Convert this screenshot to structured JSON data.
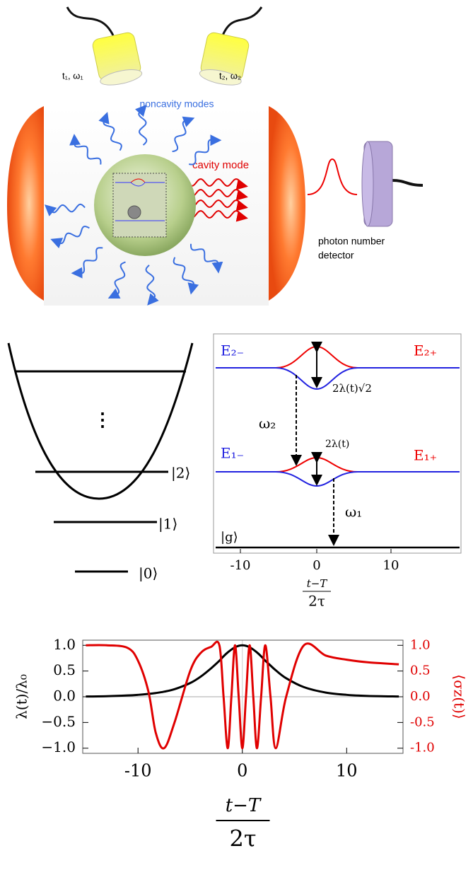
{
  "diagram": {
    "laser_left": "t₁, ω₁",
    "laser_right": "t₂, ω₂",
    "noncavity": "noncavity modes",
    "cavity": "cavity mode",
    "detector_line1": "photon number",
    "detector_line2": "detector",
    "oscillator": {
      "dots": "⋮",
      "level2": "|2⟩",
      "level1": "|1⟩",
      "level0": "|0⟩"
    },
    "levels": {
      "e2minus": "E₂₋",
      "e2plus": "E₂₊",
      "split2": "2λ(t)√2",
      "omega2": "ω₂",
      "e1minus": "E₁₋",
      "e1plus": "E₁₊",
      "split1": "2λ(t)",
      "omega1": "ω₁",
      "ground": "|g⟩",
      "tick_left": "-10",
      "tick_mid": "0",
      "tick_right": "10",
      "xlabel_num": "t−T",
      "xlabel_den": "2τ"
    }
  },
  "chart_data": {
    "type": "line",
    "xlabel_num": "t−T",
    "xlabel_den": "2τ",
    "ylabel": "λ(t)/λ₀",
    "y2label": "⟨σz(t)⟩",
    "x": [
      -15,
      -13,
      -11,
      -10,
      -9,
      -8.3,
      -7.5,
      -6.5,
      -5,
      -4,
      -3,
      -2.2,
      -1.8,
      -1.4,
      -1.05,
      -0.7,
      -0.35,
      0,
      0.35,
      0.7,
      1.05,
      1.4,
      1.8,
      2.2,
      2.7,
      3.2,
      4.2,
      5.9,
      8,
      10,
      12,
      15
    ],
    "series": [
      {
        "color": "#000000",
        "values": [
          0.005,
          0.011,
          0.025,
          0.037,
          0.055,
          0.072,
          0.099,
          0.147,
          0.266,
          0.39,
          0.552,
          0.7,
          0.787,
          0.862,
          0.917,
          0.962,
          0.99,
          1,
          0.99,
          0.962,
          0.917,
          0.862,
          0.787,
          0.7,
          0.607,
          0.515,
          0.36,
          0.187,
          0.081,
          0.037,
          0.016,
          0.005
        ]
      },
      {
        "color": "#e00000",
        "axis": "y2",
        "values": [
          1,
          1,
          0.95,
          0.7,
          0.1,
          -0.7,
          -1,
          -0.5,
          0.5,
          0.85,
          0.97,
          1,
          0,
          -1,
          0,
          1,
          0,
          -1,
          0,
          1,
          0,
          -1,
          0,
          1,
          0,
          -1,
          0,
          1,
          0.8,
          0.72,
          0.67,
          0.63
        ]
      }
    ],
    "xlim": [
      -15.3,
      15.4
    ],
    "ylim": [
      -1.1,
      1.1
    ],
    "y2lim": [
      -1.1,
      1.1
    ],
    "xticks": [
      -10,
      0,
      10
    ],
    "yticks": [
      {
        "value": 1,
        "label": "1.0"
      },
      {
        "value": 0.5,
        "label": "0.5"
      },
      {
        "value": 0,
        "label": "0.0"
      },
      {
        "value": -0.5,
        "label": "−0.5"
      },
      {
        "value": -1,
        "label": "−1.0"
      }
    ],
    "y2ticks": [
      {
        "value": 1,
        "label": "1.0"
      },
      {
        "value": 0.5,
        "label": "0.5"
      },
      {
        "value": 0,
        "label": "0.0"
      },
      {
        "value": -0.5,
        "label": "-0.5"
      },
      {
        "value": -1,
        "label": "-1.0"
      }
    ]
  }
}
